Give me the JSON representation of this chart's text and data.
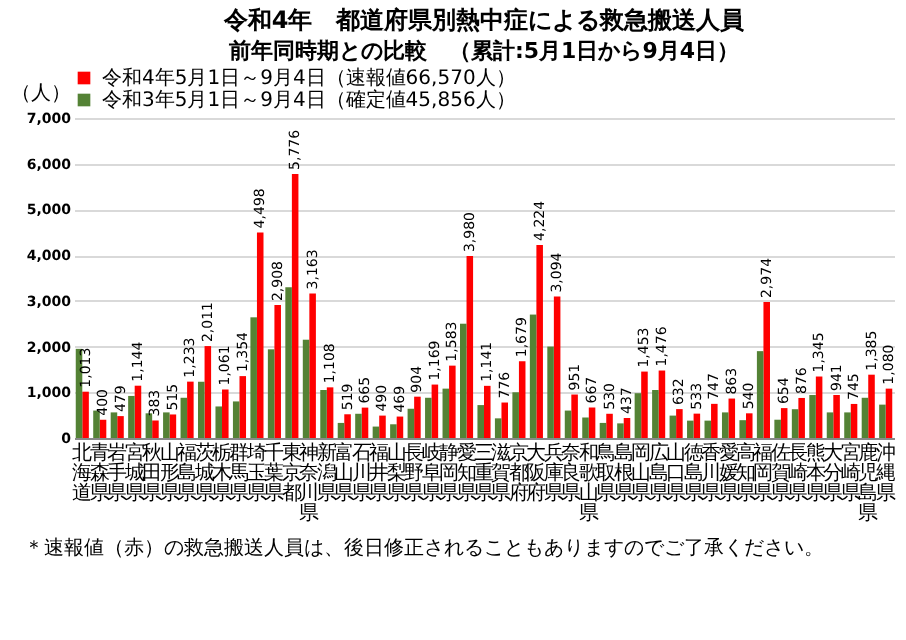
{
  "chart_data": {
    "type": "bar",
    "title": "令和4年　都道府県別熱中症による救急搬送人員",
    "subtitle": "前年同時期との比較　（累計:5月1日から9月4日）",
    "ylabel": "（人）",
    "categories": [
      "北海道",
      "青森県",
      "岩手県",
      "宮城県",
      "秋田県",
      "山形県",
      "福島県",
      "茨城県",
      "栃木県",
      "群馬県",
      "埼玉県",
      "千葉県",
      "東京都",
      "神奈川県",
      "新潟県",
      "富山県",
      "石川県",
      "福井県",
      "山梨県",
      "長野県",
      "岐阜県",
      "静岡県",
      "愛知県",
      "三重県",
      "滋賀県",
      "京都府",
      "大阪府",
      "兵庫県",
      "奈良県",
      "和歌山県",
      "鳥取県",
      "島根県",
      "岡山県",
      "広島県",
      "山口県",
      "徳島県",
      "香川県",
      "愛媛県",
      "高知県",
      "福岡県",
      "佐賀県",
      "長崎県",
      "熊本県",
      "大分県",
      "宮崎県",
      "鹿児島県",
      "沖縄県"
    ],
    "series": [
      {
        "name": "令和4年5月1日～9月4日（速報値66,570人）",
        "color": "#ff0000",
        "values": [
          1013,
          400,
          479,
          1144,
          383,
          515,
          1233,
          2011,
          1061,
          1354,
          4498,
          2908,
          5776,
          3163,
          1108,
          519,
          665,
          490,
          469,
          904,
          1169,
          1583,
          3980,
          1141,
          776,
          1679,
          4224,
          3094,
          951,
          667,
          530,
          437,
          1453,
          1476,
          632,
          533,
          747,
          863,
          540,
          2974,
          654,
          876,
          1345,
          941,
          745,
          1385,
          1080
        ],
        "value_labels": [
          "1,013",
          "400",
          "479",
          "1,144",
          "383",
          "515",
          "1,233",
          "2,011",
          "1,061",
          "1,354",
          "4,498",
          "2,908",
          "5,776",
          "3,163",
          "1,108",
          "519",
          "665",
          "490",
          "469",
          "904",
          "1,169",
          "1,583",
          "3,980",
          "1,141",
          "776",
          "1,679",
          "4,224",
          "3,094",
          "951",
          "667",
          "530",
          "437",
          "1,453",
          "1,476",
          "632",
          "533",
          "747",
          "863",
          "540",
          "2,974",
          "654",
          "876",
          "1,345",
          "941",
          "745",
          "1,385",
          "1,080"
        ]
      },
      {
        "name": "令和3年5月1日～9月4日（確定値45,856人）",
        "color": "#548235",
        "values": [
          1950,
          600,
          560,
          920,
          540,
          560,
          880,
          1230,
          690,
          800,
          2640,
          1940,
          3300,
          2150,
          1050,
          330,
          530,
          250,
          300,
          640,
          880,
          1080,
          2500,
          720,
          430,
          1000,
          2700,
          2000,
          600,
          450,
          330,
          320,
          980,
          1050,
          490,
          380,
          380,
          560,
          390,
          1900,
          400,
          630,
          940,
          560,
          560,
          880,
          730
        ]
      }
    ],
    "ylim": [
      0,
      7000
    ],
    "yticks": [
      {
        "value": 0,
        "label": "0"
      },
      {
        "value": 1000,
        "label": "1,000"
      },
      {
        "value": 2000,
        "label": "2,000"
      },
      {
        "value": 3000,
        "label": "3,000"
      },
      {
        "value": 4000,
        "label": "4,000"
      },
      {
        "value": 5000,
        "label": "5,000"
      },
      {
        "value": 6000,
        "label": "6,000"
      },
      {
        "value": 7000,
        "label": "7,000"
      }
    ],
    "grid": "y",
    "legend": "top",
    "annotations": [
      "＊速報値（赤）の救急搬送人員は、後日修正されることもありますのでご了承ください。"
    ]
  }
}
